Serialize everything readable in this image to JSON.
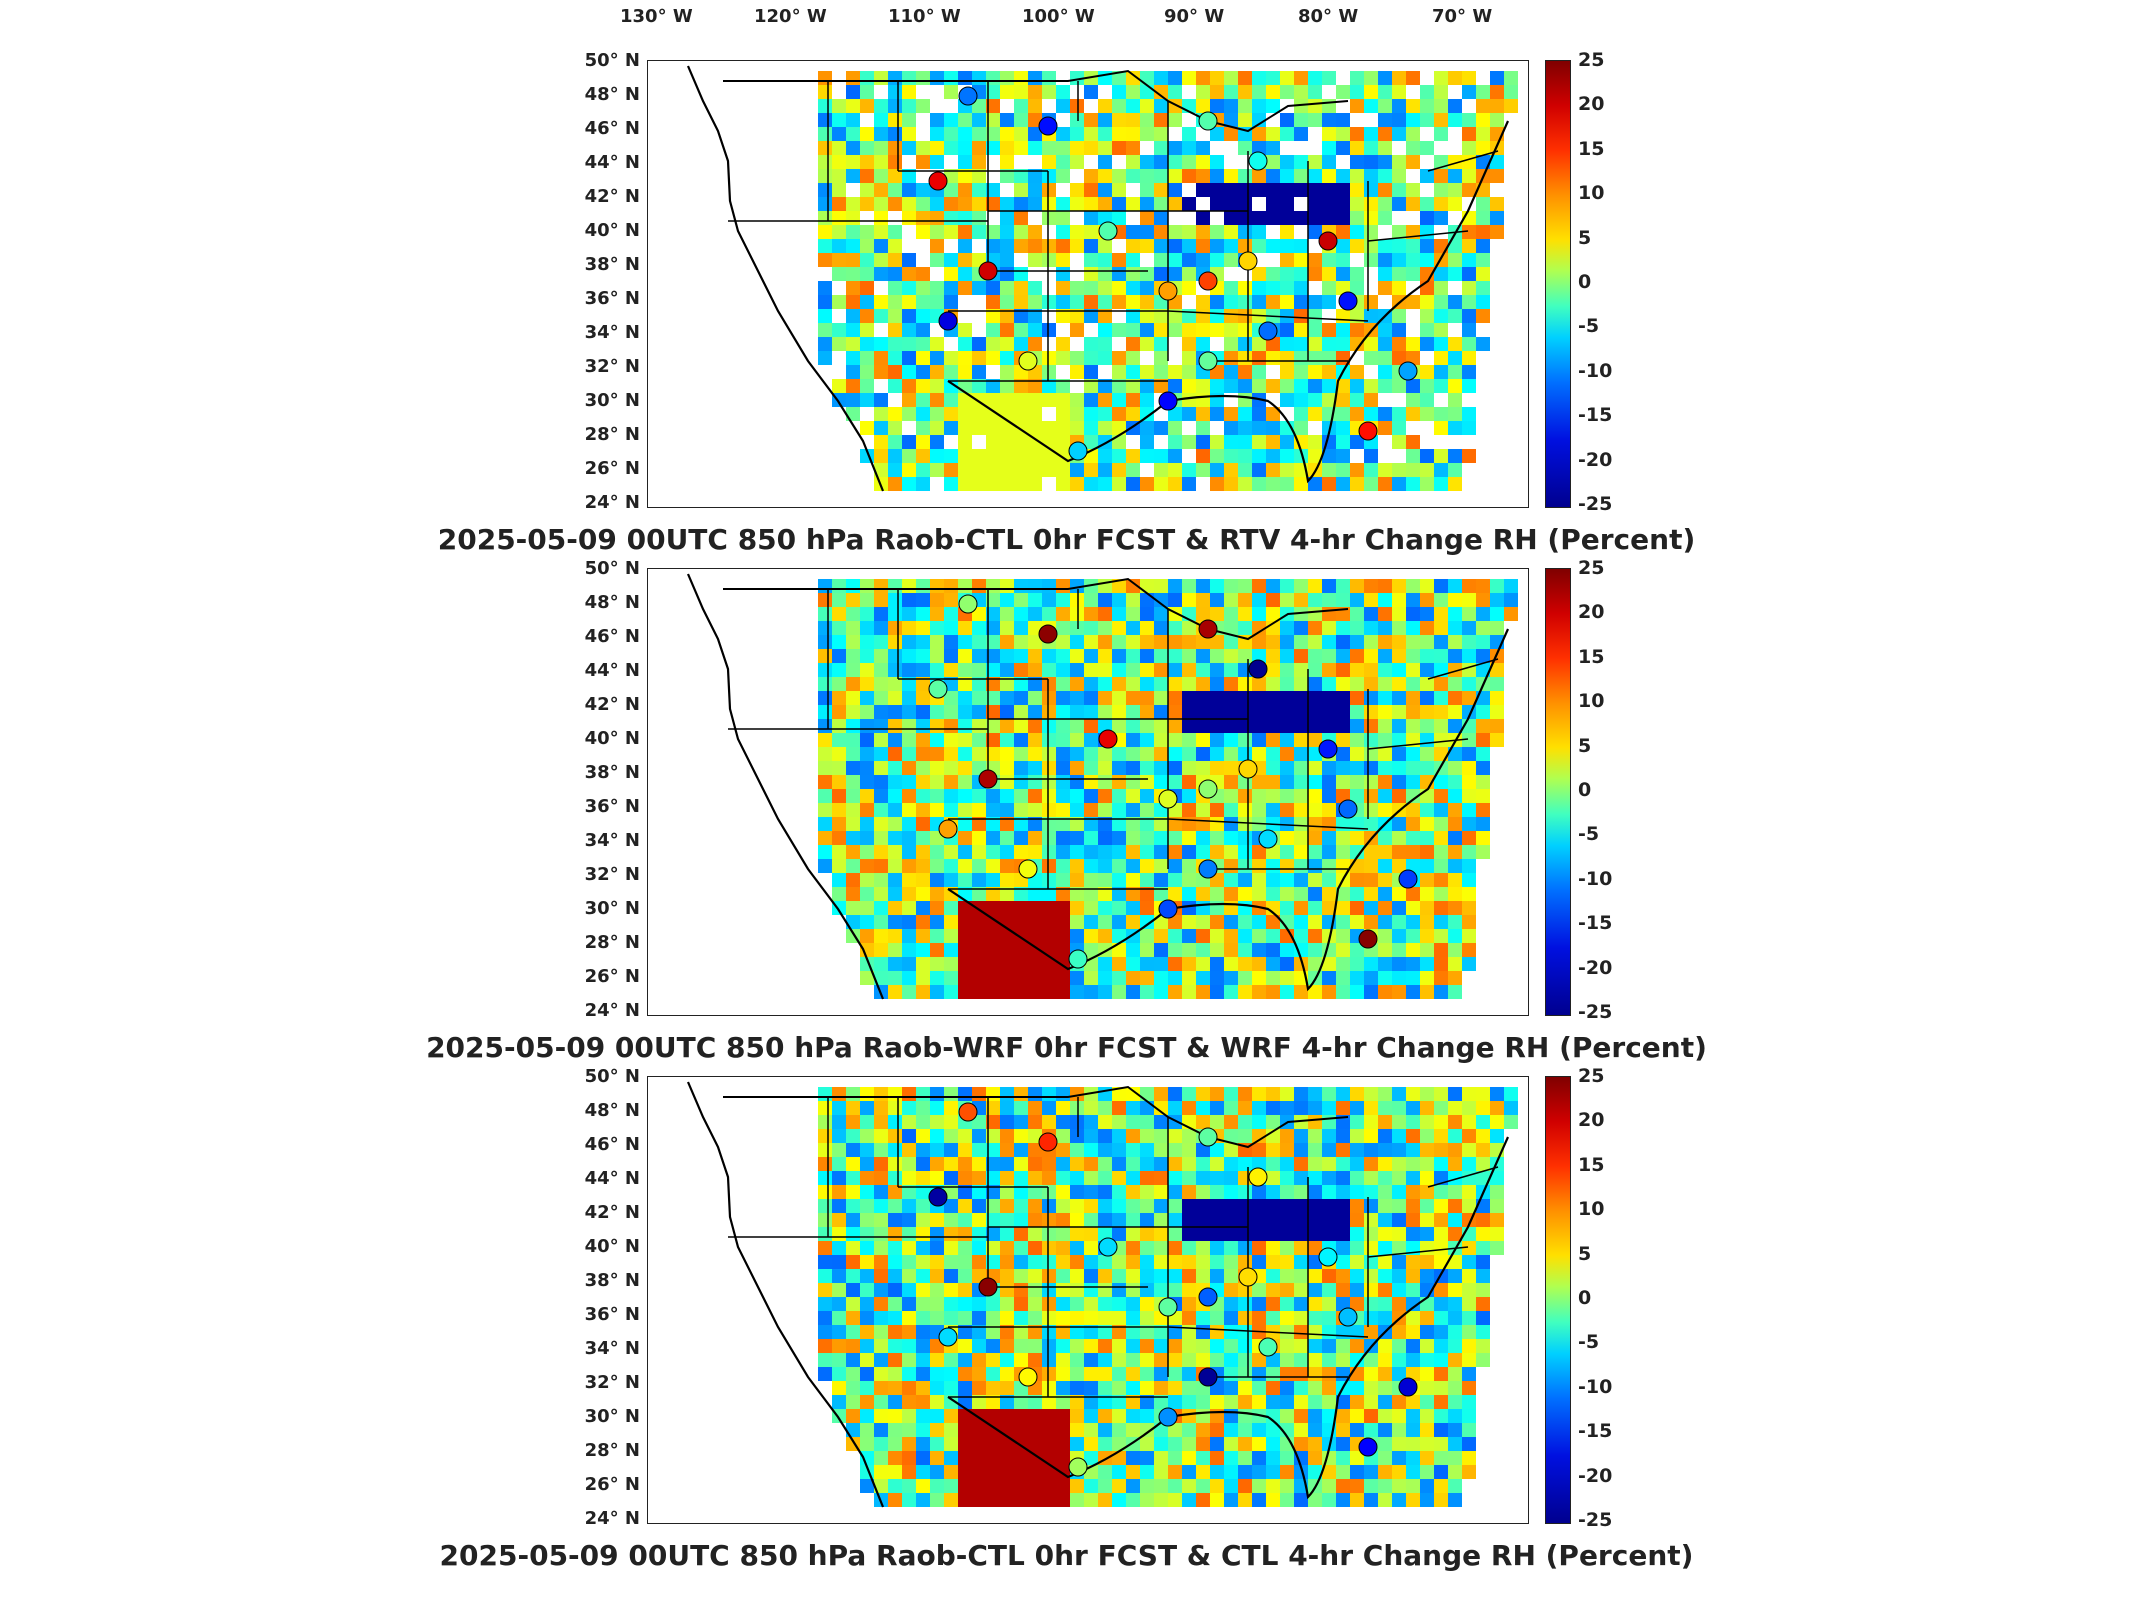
{
  "longitude_labels": [
    "130° W",
    "120° W",
    "110° W",
    "100° W",
    "90° W",
    "80° W",
    "70° W"
  ],
  "latitude_labels": [
    "50° N",
    "48° N",
    "46° N",
    "44° N",
    "42° N",
    "40° N",
    "38° N",
    "36° N",
    "34° N",
    "32° N",
    "30° N",
    "28° N",
    "26° N",
    "24° N"
  ],
  "colorbar_ticks": [
    "25",
    "20",
    "15",
    "10",
    "5",
    "0",
    "-5",
    "-10",
    "-15",
    "-20",
    "-25"
  ],
  "colorbar_range": [
    -25,
    25
  ],
  "colormap": "jet",
  "panels": [
    {
      "title": "2025-05-09 00UTC 850 hPa Raob-CTL 0hr FCST & RTV 4-hr Change RH (Percent)"
    },
    {
      "title": "2025-05-09 00UTC 850 hPa Raob-WRF 0hr FCST & WRF 4-hr Change RH (Percent)"
    },
    {
      "title": "2025-05-09 00UTC 850 hPa Raob-CTL 0hr FCST & CTL 4-hr Change RH (Percent)"
    }
  ],
  "colors": {
    "coastline": "#000000",
    "frame": "#222222"
  }
}
